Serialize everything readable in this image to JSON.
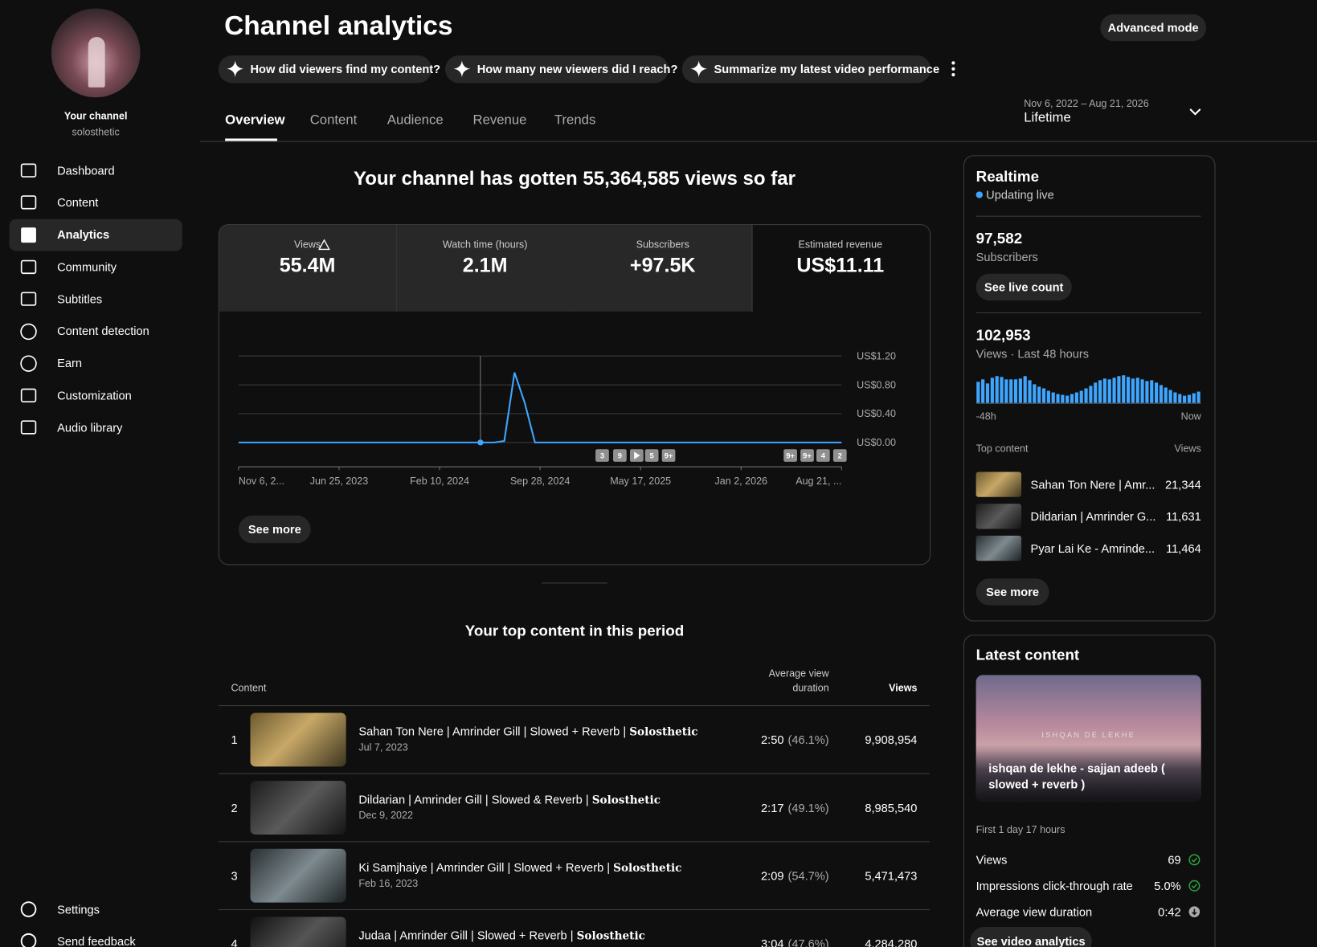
{
  "sidebar": {
    "channel_label": "Your channel",
    "handle": "solosthetic",
    "nav": [
      "Dashboard",
      "Content",
      "Analytics",
      "Community",
      "Subtitles",
      "Content detection",
      "Earn",
      "Customization",
      "Audio library"
    ],
    "footer": [
      "Settings",
      "Send feedback"
    ]
  },
  "header": {
    "title": "Channel analytics",
    "advanced": "Advanced mode",
    "prompts": [
      "How did viewers find my content?",
      "How many new viewers did I reach?",
      "Summarize my latest video performance"
    ],
    "tabs": [
      "Overview",
      "Content",
      "Audience",
      "Revenue",
      "Trends"
    ],
    "date_range": "Nov 6, 2022 – Aug 21, 2026",
    "period": "Lifetime"
  },
  "overview": {
    "headline": "Your channel has gotten 55,364,585 views so far",
    "metrics": [
      {
        "label": "Views",
        "value": "55.4M"
      },
      {
        "label": "Watch time (hours)",
        "value": "2.1M"
      },
      {
        "label": "Subscribers",
        "value": "+97.5K"
      },
      {
        "label": "Estimated revenue",
        "value": "US$11.11"
      }
    ],
    "see_more": "See more"
  },
  "chart_data": {
    "type": "line",
    "color": "#3ea6ff",
    "x_labels": [
      "Nov 6, 2...",
      "Jun 25, 2023",
      "Feb 10, 2024",
      "Sep 28, 2024",
      "May 17, 2025",
      "Jan 2, 2026",
      "Aug 21, ..."
    ],
    "values": [
      0,
      0,
      0,
      0,
      0,
      0,
      0,
      0,
      0,
      0,
      0,
      0,
      0,
      0,
      0,
      0,
      0,
      0,
      0,
      0,
      0,
      0,
      0,
      0,
      0,
      0,
      0.02,
      0.97,
      0.55,
      0,
      0,
      0,
      0,
      0,
      0,
      0,
      0,
      0,
      0,
      0,
      0,
      0,
      0,
      0,
      0,
      0,
      0,
      0,
      0,
      0,
      0,
      0,
      0,
      0,
      0,
      0,
      0,
      0,
      0,
      0
    ],
    "ylim": [
      0,
      1.2
    ],
    "yticks": [
      {
        "value": 0,
        "label": "US$0.00"
      },
      {
        "value": 0.4,
        "label": "US$0.40"
      },
      {
        "value": 0.8,
        "label": "US$0.80"
      },
      {
        "value": 1.2,
        "label": "US$1.20"
      }
    ],
    "grid": true,
    "annotations": [
      "3",
      "9",
      "5",
      "9+",
      "9+",
      "9+",
      "4",
      "2"
    ]
  },
  "top_content": {
    "title": "Your top content in this period",
    "col_content": "Content",
    "col_duration": "Average view duration",
    "col_views": "Views",
    "rows": [
      {
        "rank": "1",
        "title": "Sahan Ton Nere | Amrinder Gill | Slowed + Reverb | ",
        "channel": "Solosthetic",
        "date": "Jul 7, 2023",
        "duration": "2:50",
        "pct": "(46.1%)",
        "views": "9,908,954"
      },
      {
        "rank": "2",
        "title": "Dildarian | Amrinder Gill | Slowed & Reverb | ",
        "channel": "Solosthetic",
        "date": "Dec 9, 2022",
        "duration": "2:17",
        "pct": "(49.1%)",
        "views": "8,985,540"
      },
      {
        "rank": "3",
        "title": "Ki Samjhaiye | Amrinder Gill | Slowed + Reverb | ",
        "channel": "Solosthetic",
        "date": "Feb 16, 2023",
        "duration": "2:09",
        "pct": "(54.7%)",
        "views": "5,471,473"
      },
      {
        "rank": "4",
        "title": "Judaa | Amrinder Gill | Slowed + Reverb | ",
        "channel": "Solosthetic",
        "date": "",
        "duration": "3:04",
        "pct": "(47.6%)",
        "views": "4,284,280"
      }
    ]
  },
  "realtime": {
    "title": "Realtime",
    "live": "Updating live",
    "subs": "97,582",
    "subs_label": "Subscribers",
    "live_count": "See live count",
    "views": "102,953",
    "views_label": "Views · Last 48 hours",
    "start": "-48h",
    "end": "Now",
    "bars": [
      2600,
      2900,
      2400,
      3100,
      3300,
      3200,
      2900,
      2900,
      2900,
      3000,
      3300,
      2800,
      2300,
      2000,
      1800,
      1500,
      1300,
      1100,
      1000,
      900,
      1100,
      1300,
      1500,
      1800,
      2100,
      2500,
      2800,
      3000,
      2900,
      3100,
      3300,
      3400,
      3200,
      3000,
      3100,
      2900,
      2700,
      2800,
      2500,
      2200,
      1900,
      1600,
      1300,
      1100,
      900,
      1000,
      1200,
      1400
    ],
    "top_label": "Top content",
    "top_views": "Views",
    "top": [
      {
        "title": "Sahan Ton Nere | Amr...",
        "views": "21,344"
      },
      {
        "title": "Dildarian | Amrinder G...",
        "views": "11,631"
      },
      {
        "title": "Pyar Lai Ke - Amrinde...",
        "views": "11,464"
      }
    ],
    "see_more": "See more"
  },
  "latest": {
    "title": "Latest content",
    "caption": "ishqan de lekhe - sajjan adeeb ( slowed + reverb )",
    "overlay": "ISHQAN DE LEKHE",
    "period": "First 1 day 17 hours",
    "rows": [
      {
        "label": "Views",
        "value": "69"
      },
      {
        "label": "Impressions click-through rate",
        "value": "5.0%"
      },
      {
        "label": "Average view duration",
        "value": "0:42"
      }
    ],
    "button": "See video analytics"
  }
}
